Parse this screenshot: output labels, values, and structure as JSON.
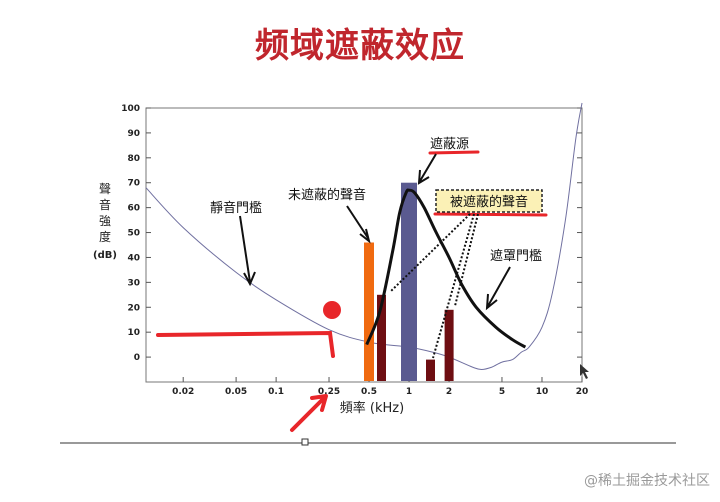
{
  "slide_title": "频域遮蔽效应",
  "watermark": "@稀土掘金技术社区",
  "colors": {
    "title": "#c0262d",
    "threshold_curve": "#7070a0",
    "mask_curve": "#111111",
    "orange_bar": "#f06a10",
    "masker_bar": "#5a5a90",
    "masked_bar": "#6e0e12",
    "annotation_red": "#e8262a",
    "legend_box_bg": "#fbf1b6"
  },
  "chart_data": {
    "type": "line",
    "title": "",
    "xlabel": "頻率 (kHz)",
    "ylabel": [
      "聲",
      "音",
      "強",
      "度",
      "(dB)"
    ],
    "x_scale": "log",
    "xlim": [
      0.0105,
      20
    ],
    "ylim": [
      -10,
      100
    ],
    "x_ticks": [
      0.02,
      0.05,
      0.1,
      0.25,
      0.5,
      1,
      2,
      5,
      10,
      20
    ],
    "x_tick_labels": [
      "0.02",
      "0.05",
      "0.1",
      "0.25",
      "0.5",
      "1",
      "2",
      "5",
      "10",
      "20"
    ],
    "y_ticks": [
      0,
      10,
      20,
      30,
      40,
      50,
      60,
      70,
      80,
      90,
      100
    ],
    "y_tick_labels": [
      "0",
      "10",
      "20",
      "30",
      "40",
      "50",
      "60",
      "70",
      "80",
      "90",
      "100"
    ],
    "series": [
      {
        "kind": "threshold",
        "x": [
          0.0105,
          0.02,
          0.05,
          0.1,
          0.25,
          0.5,
          1,
          1.5,
          2,
          3,
          3.5,
          4.2,
          5,
          6,
          7,
          8,
          10,
          12,
          15,
          18,
          20
        ],
        "y": [
          68,
          52,
          34,
          23,
          11,
          6,
          4,
          2,
          0,
          -4,
          -5,
          -4,
          -2,
          -1,
          2,
          4,
          12,
          26,
          55,
          88,
          102
        ]
      },
      {
        "kind": "masking",
        "x": [
          0.48,
          0.6,
          0.75,
          0.85,
          0.95,
          1.0,
          1.1,
          1.3,
          1.6,
          2.0,
          2.5,
          3.2,
          4.5,
          6,
          7.5
        ],
        "y": [
          5,
          18,
          42,
          58,
          66,
          67,
          66,
          60,
          50,
          40,
          29,
          20,
          12,
          7,
          4
        ]
      }
    ],
    "bars": [
      {
        "x": 0.5,
        "value": 46,
        "role": "unmasked"
      },
      {
        "x": 0.62,
        "value": 25,
        "role": "masked"
      },
      {
        "x": 1.0,
        "value": 70,
        "role": "masker"
      },
      {
        "x": 1.45,
        "value": -1,
        "role": "masked"
      },
      {
        "x": 2.0,
        "value": 19,
        "role": "masked"
      }
    ],
    "annotations": {
      "threshold": "靜音門檻",
      "unmasked": "未遮蔽的聲音",
      "masker": "遮蔽源",
      "masked": "被遮蔽的聲音",
      "masking_threshold": "遮罩門檻"
    }
  }
}
